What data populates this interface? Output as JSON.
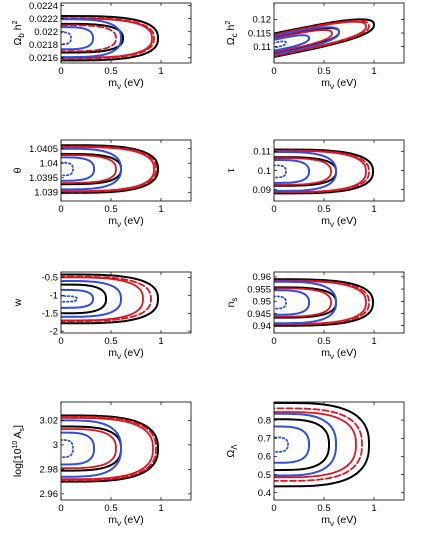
{
  "colors": {
    "black": "#000000",
    "red": "#e0141e",
    "blue": "#2f4fe0"
  },
  "chart_data": [
    {
      "type": "contour",
      "id": "omega-b",
      "xlabel": "m",
      "xlabel_sub": "ν",
      "xlabel_unit": " (eV)",
      "ylabel": "Ω",
      "ylabel_sub": "b",
      "ylabel_rest": " h",
      "ylabel_sup": "2",
      "xlim": [
        0,
        1.3
      ],
      "ylim": [
        0.02152,
        0.02244
      ],
      "xticks": [
        0,
        0.5,
        1
      ],
      "yticks": [
        0.0216,
        0.0218,
        0.022,
        0.0222,
        0.0224
      ],
      "xtick_labels": [
        "0",
        "0.5",
        "1"
      ],
      "ytick_labels": [
        "0.0216",
        "0.0218",
        "0.022",
        "0.0222",
        "0.0224"
      ],
      "ycenter": 0.0219,
      "contours": [
        {
          "color": "black",
          "style": "solid",
          "width": 2,
          "xmax": 0.97,
          "yhalf": 0.00034
        },
        {
          "color": "red",
          "style": "dashed",
          "width": 1.8,
          "xmax": 0.93,
          "yhalf": 0.00031
        },
        {
          "color": "red",
          "style": "solid",
          "width": 1.8,
          "xmax": 0.91,
          "yhalf": 0.0003
        },
        {
          "color": "black",
          "style": "solid",
          "width": 2,
          "xmax": 0.62,
          "yhalf": 0.00022
        },
        {
          "color": "red",
          "style": "dashed",
          "width": 1.8,
          "xmax": 0.55,
          "yhalf": 0.0002
        },
        {
          "color": "blue",
          "style": "solid",
          "width": 2,
          "xmax": 0.6,
          "yhalf": 0.00029
        },
        {
          "color": "blue",
          "style": "solid",
          "width": 2,
          "xmax": 0.32,
          "yhalf": 0.00017
        },
        {
          "color": "blue",
          "style": "dotted",
          "width": 1.8,
          "xmax": 0.1,
          "yhalf": 9e-05
        }
      ]
    },
    {
      "type": "contour",
      "id": "omega-c",
      "xlabel": "m",
      "xlabel_sub": "ν",
      "xlabel_unit": " (eV)",
      "ylabel": "Ω",
      "ylabel_sub": "c",
      "ylabel_rest": " h",
      "ylabel_sup": "2",
      "xlim": [
        0,
        1.3
      ],
      "ylim": [
        0.104,
        0.126
      ],
      "xticks": [
        0,
        0.5,
        1
      ],
      "yticks": [
        0.11,
        0.115,
        0.12
      ],
      "xtick_labels": [
        "0",
        "0.5",
        "1"
      ],
      "ytick_labels": [
        "0.11",
        "0.115",
        "0.12"
      ],
      "ycenter": 0.1105,
      "slope": 0.0075,
      "contours": [
        {
          "color": "black",
          "style": "solid",
          "width": 2,
          "xmax": 1.0,
          "yhalf": 0.0043
        },
        {
          "color": "red",
          "style": "dashed",
          "width": 1.8,
          "xmax": 0.95,
          "yhalf": 0.004
        },
        {
          "color": "red",
          "style": "solid",
          "width": 1.8,
          "xmax": 0.92,
          "yhalf": 0.0038
        },
        {
          "color": "black",
          "style": "solid",
          "width": 2,
          "xmax": 0.65,
          "yhalf": 0.003
        },
        {
          "color": "red",
          "style": "solid",
          "width": 1.8,
          "xmax": 0.58,
          "yhalf": 0.0026
        },
        {
          "color": "blue",
          "style": "solid",
          "width": 2,
          "xmax": 0.65,
          "yhalf": 0.0034
        },
        {
          "color": "blue",
          "style": "solid",
          "width": 2,
          "xmax": 0.35,
          "yhalf": 0.002
        },
        {
          "color": "blue",
          "style": "dotted",
          "width": 1.8,
          "xmax": 0.12,
          "yhalf": 0.0009
        }
      ]
    },
    {
      "type": "contour",
      "id": "theta",
      "xlabel": "m",
      "xlabel_sub": "ν",
      "xlabel_unit": " (eV)",
      "ylabel": "θ",
      "ylabel_sub": "",
      "ylabel_rest": "",
      "ylabel_sup": "",
      "xlim": [
        0,
        1.3
      ],
      "ylim": [
        1.0387,
        1.0408
      ],
      "xticks": [
        0,
        0.5,
        1
      ],
      "yticks": [
        1.039,
        1.0395,
        1.04,
        1.0405
      ],
      "xtick_labels": [
        "0",
        "0.5",
        "1"
      ],
      "ytick_labels": [
        "1.039",
        "1.0395",
        "1.04",
        "1.0405"
      ],
      "ycenter": 1.0398,
      "contours": [
        {
          "color": "black",
          "style": "solid",
          "width": 2,
          "xmax": 0.97,
          "yhalf": 0.00082
        },
        {
          "color": "red",
          "style": "dashed",
          "width": 1.8,
          "xmax": 0.95,
          "yhalf": 0.00078
        },
        {
          "color": "red",
          "style": "solid",
          "width": 1.8,
          "xmax": 0.93,
          "yhalf": 0.00076
        },
        {
          "color": "black",
          "style": "solid",
          "width": 2,
          "xmax": 0.6,
          "yhalf": 0.00052
        },
        {
          "color": "red",
          "style": "solid",
          "width": 1.8,
          "xmax": 0.55,
          "yhalf": 0.00048
        },
        {
          "color": "blue",
          "style": "solid",
          "width": 2,
          "xmax": 0.6,
          "yhalf": 0.0007
        },
        {
          "color": "blue",
          "style": "solid",
          "width": 2,
          "xmax": 0.33,
          "yhalf": 0.0004
        },
        {
          "color": "blue",
          "style": "dotted",
          "width": 1.8,
          "xmax": 0.12,
          "yhalf": 0.00022
        }
      ]
    },
    {
      "type": "contour",
      "id": "tau",
      "xlabel": "m",
      "xlabel_sub": "ν",
      "xlabel_unit": " (eV)",
      "ylabel": "τ",
      "ylabel_sub": "",
      "ylabel_rest": "",
      "ylabel_sup": "",
      "xlim": [
        0,
        1.3
      ],
      "ylim": [
        0.084,
        0.116
      ],
      "xticks": [
        0,
        0.5,
        1
      ],
      "yticks": [
        0.09,
        0.1,
        0.11
      ],
      "xtick_labels": [
        "0",
        "0.5",
        "1"
      ],
      "ytick_labels": [
        "0.09",
        "0.1",
        "0.11"
      ],
      "ycenter": 0.0995,
      "contours": [
        {
          "color": "black",
          "style": "solid",
          "width": 2,
          "xmax": 0.99,
          "yhalf": 0.0115
        },
        {
          "color": "red",
          "style": "dashed",
          "width": 1.8,
          "xmax": 0.95,
          "yhalf": 0.011
        },
        {
          "color": "red",
          "style": "solid",
          "width": 1.8,
          "xmax": 0.92,
          "yhalf": 0.0108
        },
        {
          "color": "black",
          "style": "solid",
          "width": 2,
          "xmax": 0.62,
          "yhalf": 0.0075
        },
        {
          "color": "red",
          "style": "solid",
          "width": 1.8,
          "xmax": 0.57,
          "yhalf": 0.007
        },
        {
          "color": "blue",
          "style": "solid",
          "width": 2,
          "xmax": 0.62,
          "yhalf": 0.0102
        },
        {
          "color": "blue",
          "style": "solid",
          "width": 2,
          "xmax": 0.35,
          "yhalf": 0.006
        },
        {
          "color": "blue",
          "style": "dotted",
          "width": 1.8,
          "xmax": 0.12,
          "yhalf": 0.0032
        }
      ]
    },
    {
      "type": "contour",
      "id": "w",
      "xlabel": "m",
      "xlabel_sub": "ν",
      "xlabel_unit": " (eV)",
      "ylabel": "w",
      "ylabel_sub": "",
      "ylabel_rest": "",
      "ylabel_sup": "",
      "xlim": [
        0,
        1.3
      ],
      "ylim": [
        -2.05,
        -0.35
      ],
      "xticks": [
        0,
        0.5,
        1
      ],
      "yticks": [
        -2,
        -1.5,
        -1,
        -0.5
      ],
      "xtick_labels": [
        "0",
        "0.5",
        "1"
      ],
      "ytick_labels": [
        "-2",
        "-1.5",
        "-1",
        "-0.5"
      ],
      "ycenter": -1.1,
      "contours": [
        {
          "color": "black",
          "style": "solid",
          "width": 2,
          "xmax": 0.97,
          "yhalf": 0.68
        },
        {
          "color": "red",
          "style": "dashed",
          "width": 1.8,
          "xmax": 0.9,
          "yhalf": 0.62
        },
        {
          "color": "red",
          "style": "solid",
          "width": 1.8,
          "xmax": 0.82,
          "yhalf": 0.6
        },
        {
          "color": "black",
          "style": "solid",
          "width": 2,
          "xmax": 0.45,
          "yhalf": 0.4
        },
        {
          "color": "blue",
          "style": "solid",
          "width": 2,
          "xmax": 0.6,
          "yhalf": 0.5
        },
        {
          "color": "blue",
          "style": "solid",
          "width": 2,
          "xmax": 0.32,
          "yhalf": 0.25
        },
        {
          "color": "blue",
          "style": "dotted",
          "width": 1.8,
          "xmax": 0.16,
          "yhalf": 0.08
        }
      ]
    },
    {
      "type": "contour",
      "id": "ns",
      "xlabel": "m",
      "xlabel_sub": "ν",
      "xlabel_unit": " (eV)",
      "ylabel": "n",
      "ylabel_sub": "s",
      "ylabel_rest": "",
      "ylabel_sup": "",
      "xlim": [
        0,
        1.3
      ],
      "ylim": [
        0.937,
        0.962
      ],
      "xticks": [
        0,
        0.5,
        1
      ],
      "yticks": [
        0.94,
        0.945,
        0.95,
        0.955,
        0.96
      ],
      "xtick_labels": [
        "0",
        "0.5",
        "1"
      ],
      "ytick_labels": [
        "0.94",
        "0.945",
        "0.95",
        "0.955",
        "0.96"
      ],
      "ycenter": 0.9495,
      "contours": [
        {
          "color": "black",
          "style": "solid",
          "width": 2,
          "xmax": 0.99,
          "yhalf": 0.0095
        },
        {
          "color": "red",
          "style": "dashed",
          "width": 1.8,
          "xmax": 0.95,
          "yhalf": 0.009
        },
        {
          "color": "red",
          "style": "solid",
          "width": 1.8,
          "xmax": 0.92,
          "yhalf": 0.0088
        },
        {
          "color": "black",
          "style": "solid",
          "width": 2,
          "xmax": 0.62,
          "yhalf": 0.0062
        },
        {
          "color": "red",
          "style": "solid",
          "width": 1.8,
          "xmax": 0.57,
          "yhalf": 0.0058
        },
        {
          "color": "blue",
          "style": "solid",
          "width": 2,
          "xmax": 0.62,
          "yhalf": 0.0085
        },
        {
          "color": "blue",
          "style": "solid",
          "width": 2,
          "xmax": 0.35,
          "yhalf": 0.005
        },
        {
          "color": "blue",
          "style": "dotted",
          "width": 1.8,
          "xmax": 0.12,
          "yhalf": 0.0025
        }
      ]
    },
    {
      "type": "contour",
      "id": "log-as",
      "xlabel": "m",
      "xlabel_sub": "ν",
      "xlabel_unit": " (eV)",
      "ylabel": "log[10",
      "ylabel_sub": "",
      "ylabel_rest": " A",
      "ylabel_sup": "10",
      "ylabel_after": "s",
      "ylabel_end": "]",
      "xlim": [
        0,
        1.3
      ],
      "ylim": [
        2.955,
        3.035
      ],
      "xticks": [
        0,
        0.5,
        1
      ],
      "yticks": [
        2.96,
        2.98,
        3,
        3.02
      ],
      "xtick_labels": [
        "0",
        "0.5",
        "1"
      ],
      "ytick_labels": [
        "2.96",
        "2.98",
        "3",
        "3.02"
      ],
      "ycenter": 2.997,
      "contours": [
        {
          "color": "black",
          "style": "solid",
          "width": 2,
          "xmax": 0.97,
          "yhalf": 0.027
        },
        {
          "color": "red",
          "style": "dashed",
          "width": 1.8,
          "xmax": 0.95,
          "yhalf": 0.026
        },
        {
          "color": "red",
          "style": "solid",
          "width": 1.8,
          "xmax": 0.92,
          "yhalf": 0.025
        },
        {
          "color": "black",
          "style": "solid",
          "width": 2,
          "xmax": 0.6,
          "yhalf": 0.018
        },
        {
          "color": "red",
          "style": "solid",
          "width": 1.8,
          "xmax": 0.55,
          "yhalf": 0.016
        },
        {
          "color": "blue",
          "style": "solid",
          "width": 2,
          "xmax": 0.6,
          "yhalf": 0.023
        },
        {
          "color": "blue",
          "style": "solid",
          "width": 2,
          "xmax": 0.33,
          "yhalf": 0.013
        },
        {
          "color": "blue",
          "style": "dotted",
          "width": 1.8,
          "xmax": 0.12,
          "yhalf": 0.007
        }
      ]
    },
    {
      "type": "contour",
      "id": "omega-lambda",
      "xlabel": "m",
      "xlabel_sub": "ν",
      "xlabel_unit": " (eV)",
      "ylabel": "Ω",
      "ylabel_sub": "Λ",
      "ylabel_rest": "",
      "ylabel_sup": "",
      "xlim": [
        0,
        1.3
      ],
      "ylim": [
        0.36,
        0.9
      ],
      "xticks": [
        0,
        0.5,
        1
      ],
      "yticks": [
        0.4,
        0.5,
        0.6,
        0.7,
        0.8
      ],
      "xtick_labels": [
        "0",
        "0.5",
        "1"
      ],
      "ytick_labels": [
        "0.4",
        "0.5",
        "0.6",
        "0.7",
        "0.8"
      ],
      "ycenter": 0.665,
      "contours": [
        {
          "color": "black",
          "style": "solid",
          "width": 2,
          "xmax": 0.95,
          "yhalf": 0.23
        },
        {
          "color": "red",
          "style": "dashed",
          "width": 1.8,
          "xmax": 0.88,
          "yhalf": 0.2
        },
        {
          "color": "red",
          "style": "solid",
          "width": 1.8,
          "xmax": 0.82,
          "yhalf": 0.18
        },
        {
          "color": "black",
          "style": "solid",
          "width": 2,
          "xmax": 0.55,
          "yhalf": 0.14
        },
        {
          "color": "blue",
          "style": "solid",
          "width": 2,
          "xmax": 0.62,
          "yhalf": 0.17
        },
        {
          "color": "blue",
          "style": "solid",
          "width": 2,
          "xmax": 0.35,
          "yhalf": 0.1
        },
        {
          "color": "blue",
          "style": "dotted",
          "width": 1.8,
          "xmax": 0.14,
          "yhalf": 0.04
        }
      ]
    }
  ]
}
